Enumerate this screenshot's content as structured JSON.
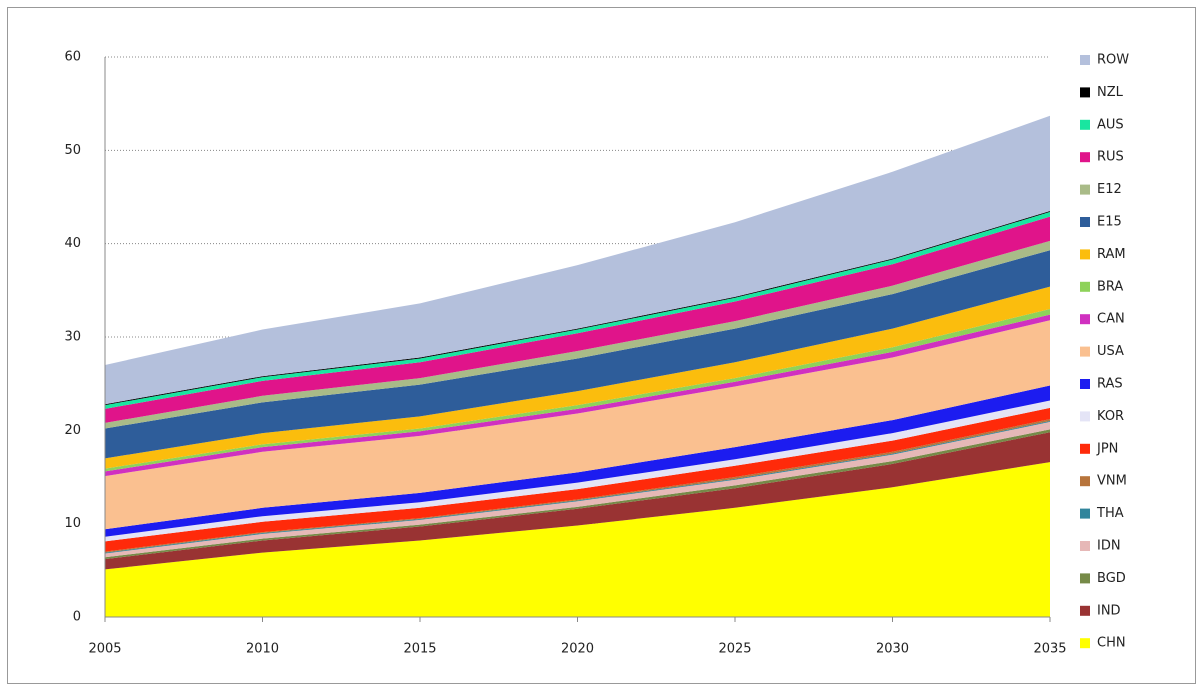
{
  "chart_data": {
    "type": "stacked-area",
    "x": [
      2005,
      2010,
      2015,
      2020,
      2025,
      2030,
      2035
    ],
    "xlim": [
      2005,
      2035
    ],
    "xticks": [
      2005,
      2010,
      2015,
      2020,
      2025,
      2030,
      2035
    ],
    "ylim": [
      0,
      60
    ],
    "yticks": [
      0,
      10,
      20,
      30,
      40,
      50,
      60
    ],
    "grid": true,
    "legend": "right",
    "series": [
      {
        "name": "CHN",
        "color": "#ffff00",
        "values": [
          5.1,
          6.9,
          8.2,
          9.8,
          11.7,
          13.9,
          16.6
        ]
      },
      {
        "name": "IND",
        "color": "#993333",
        "values": [
          1.1,
          1.3,
          1.5,
          1.8,
          2.1,
          2.5,
          3.2
        ]
      },
      {
        "name": "BGD",
        "color": "#768a48",
        "values": [
          0.2,
          0.2,
          0.2,
          0.2,
          0.3,
          0.3,
          0.3
        ]
      },
      {
        "name": "IDN",
        "color": "#e6b8b7",
        "values": [
          0.4,
          0.5,
          0.5,
          0.6,
          0.6,
          0.7,
          0.8
        ]
      },
      {
        "name": "THA",
        "color": "#31859c",
        "values": [
          0.1,
          0.1,
          0.1,
          0.1,
          0.1,
          0.1,
          0.1
        ]
      },
      {
        "name": "VNM",
        "color": "#b7743c",
        "values": [
          0.1,
          0.1,
          0.1,
          0.1,
          0.2,
          0.2,
          0.2
        ]
      },
      {
        "name": "JPN",
        "color": "#ff2a0a",
        "values": [
          1.1,
          1.1,
          1.1,
          1.1,
          1.2,
          1.2,
          1.2
        ]
      },
      {
        "name": "KOR",
        "color": "#e4e4f6",
        "values": [
          0.5,
          0.6,
          0.6,
          0.7,
          0.7,
          0.8,
          0.8
        ]
      },
      {
        "name": "RAS",
        "color": "#1c1cf0",
        "values": [
          0.8,
          0.9,
          1.0,
          1.1,
          1.3,
          1.4,
          1.6
        ]
      },
      {
        "name": "USA",
        "color": "#fac090",
        "values": [
          5.7,
          6.0,
          6.1,
          6.3,
          6.5,
          6.7,
          7.0
        ]
      },
      {
        "name": "CAN",
        "color": "#d030c0",
        "values": [
          0.5,
          0.5,
          0.5,
          0.5,
          0.5,
          0.6,
          0.6
        ]
      },
      {
        "name": "BRA",
        "color": "#8ed25a",
        "values": [
          0.3,
          0.3,
          0.3,
          0.4,
          0.4,
          0.5,
          0.6
        ]
      },
      {
        "name": "RAM",
        "color": "#fbbd0d",
        "values": [
          1.1,
          1.2,
          1.3,
          1.5,
          1.7,
          2.0,
          2.4
        ]
      },
      {
        "name": "E15",
        "color": "#2e5d9a",
        "values": [
          3.2,
          3.3,
          3.4,
          3.5,
          3.6,
          3.7,
          3.9
        ]
      },
      {
        "name": "E12",
        "color": "#a9bb88",
        "values": [
          0.6,
          0.7,
          0.7,
          0.8,
          0.8,
          0.9,
          1.0
        ]
      },
      {
        "name": "RUS",
        "color": "#e0148a",
        "values": [
          1.5,
          1.6,
          1.7,
          1.9,
          2.1,
          2.3,
          2.6
        ]
      },
      {
        "name": "AUS",
        "color": "#19e6a0",
        "values": [
          0.4,
          0.4,
          0.4,
          0.4,
          0.4,
          0.5,
          0.5
        ]
      },
      {
        "name": "NZL",
        "color": "#000000",
        "values": [
          0.1,
          0.1,
          0.1,
          0.1,
          0.1,
          0.1,
          0.1
        ]
      },
      {
        "name": "ROW",
        "color": "#b4c0dc",
        "values": [
          4.2,
          5.0,
          5.8,
          6.8,
          8.0,
          9.3,
          10.2
        ]
      }
    ]
  }
}
